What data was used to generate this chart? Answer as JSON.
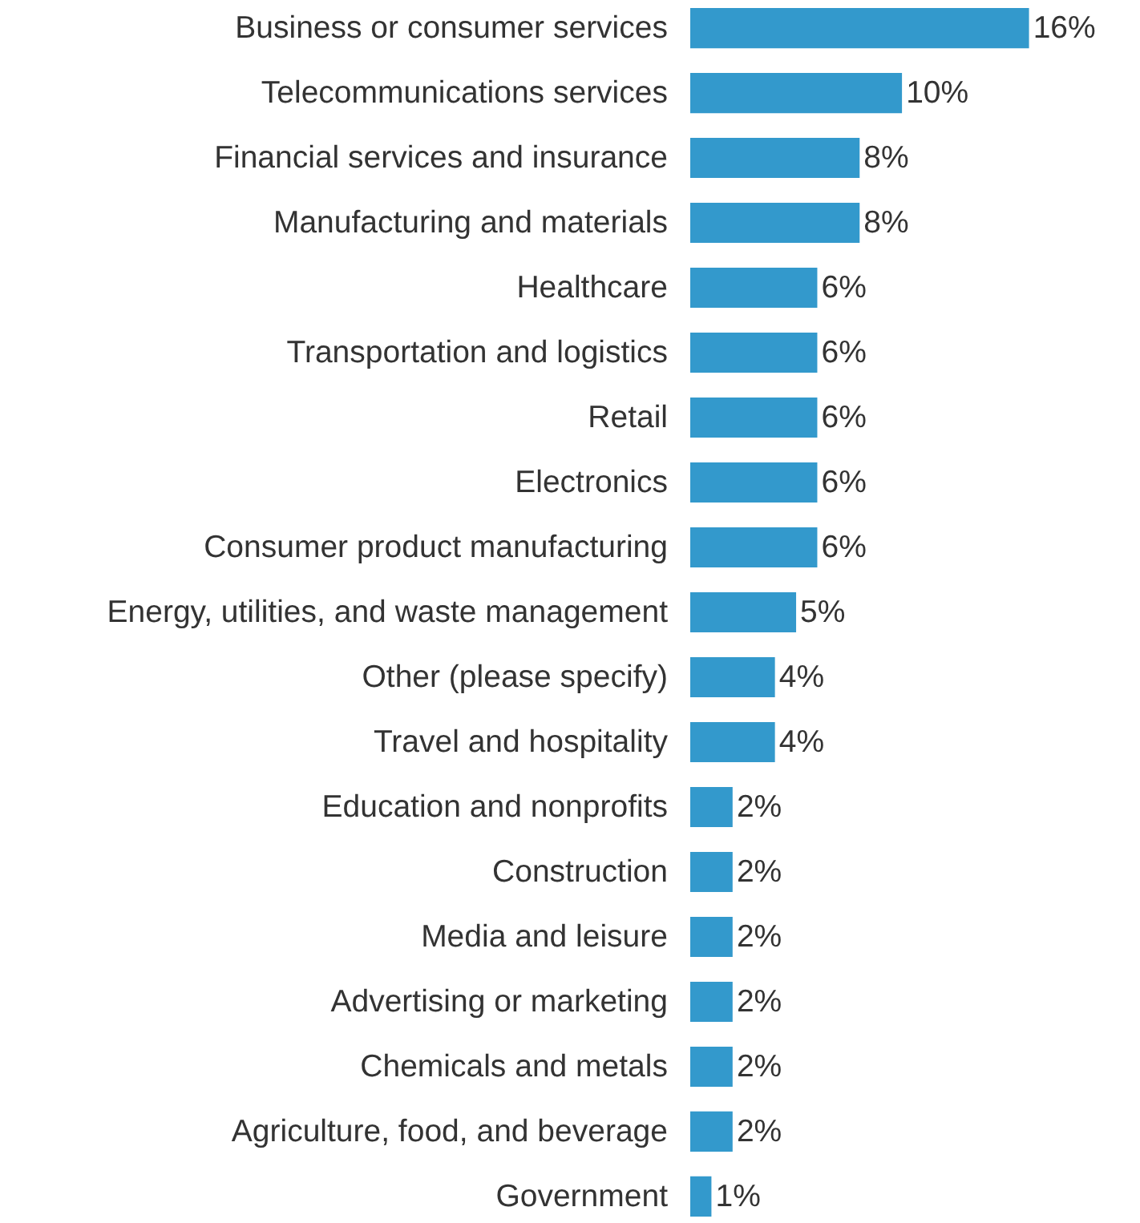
{
  "chart_data": {
    "type": "bar",
    "orientation": "horizontal",
    "data_labels": true,
    "categories": [
      "Business or consumer services",
      "Telecommunications services",
      "Financial services and insurance",
      "Manufacturing and materials",
      "Healthcare",
      "Transportation and logistics",
      "Retail",
      "Electronics",
      "Consumer product manufacturing",
      "Energy, utilities, and waste management",
      "Other (please specify)",
      "Travel and hospitality",
      "Education and nonprofits",
      "Construction",
      "Media and leisure",
      "Advertising or marketing",
      "Chemicals and metals",
      "Agriculture, food, and beverage",
      "Government"
    ],
    "values": [
      16,
      10,
      8,
      8,
      6,
      6,
      6,
      6,
      6,
      5,
      4,
      4,
      2,
      2,
      2,
      2,
      2,
      2,
      1
    ],
    "color": "#3399cc",
    "value_labels": [
      "16%",
      "10%",
      "8%",
      "8%",
      "6%",
      "6%",
      "6%",
      "6%",
      "6%",
      "5%",
      "4%",
      "4%",
      "2%",
      "2%",
      "2%",
      "2%",
      "2%",
      "2%",
      "1%"
    ]
  }
}
